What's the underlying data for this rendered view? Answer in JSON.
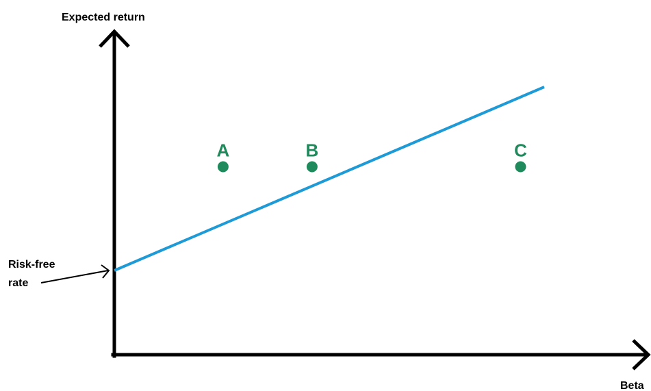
{
  "chart_data": {
    "type": "line",
    "xlabel": "Beta",
    "ylabel": "Expected return",
    "sml": {
      "x": [
        0,
        10
      ],
      "y": [
        0,
        6.9
      ]
    },
    "points": [
      {
        "label": "A",
        "x": 2.53,
        "y": 3.9
      },
      {
        "label": "B",
        "x": 4.6,
        "y": 3.9
      },
      {
        "label": "C",
        "x": 9.45,
        "y": 3.9
      }
    ],
    "annotation": {
      "lines": [
        "Risk-free",
        "rate"
      ]
    },
    "grid": false,
    "legend": "none"
  },
  "colors": {
    "axis": "#000000",
    "sml_line": "#1e9ad6",
    "points": "#1f8a5b"
  }
}
